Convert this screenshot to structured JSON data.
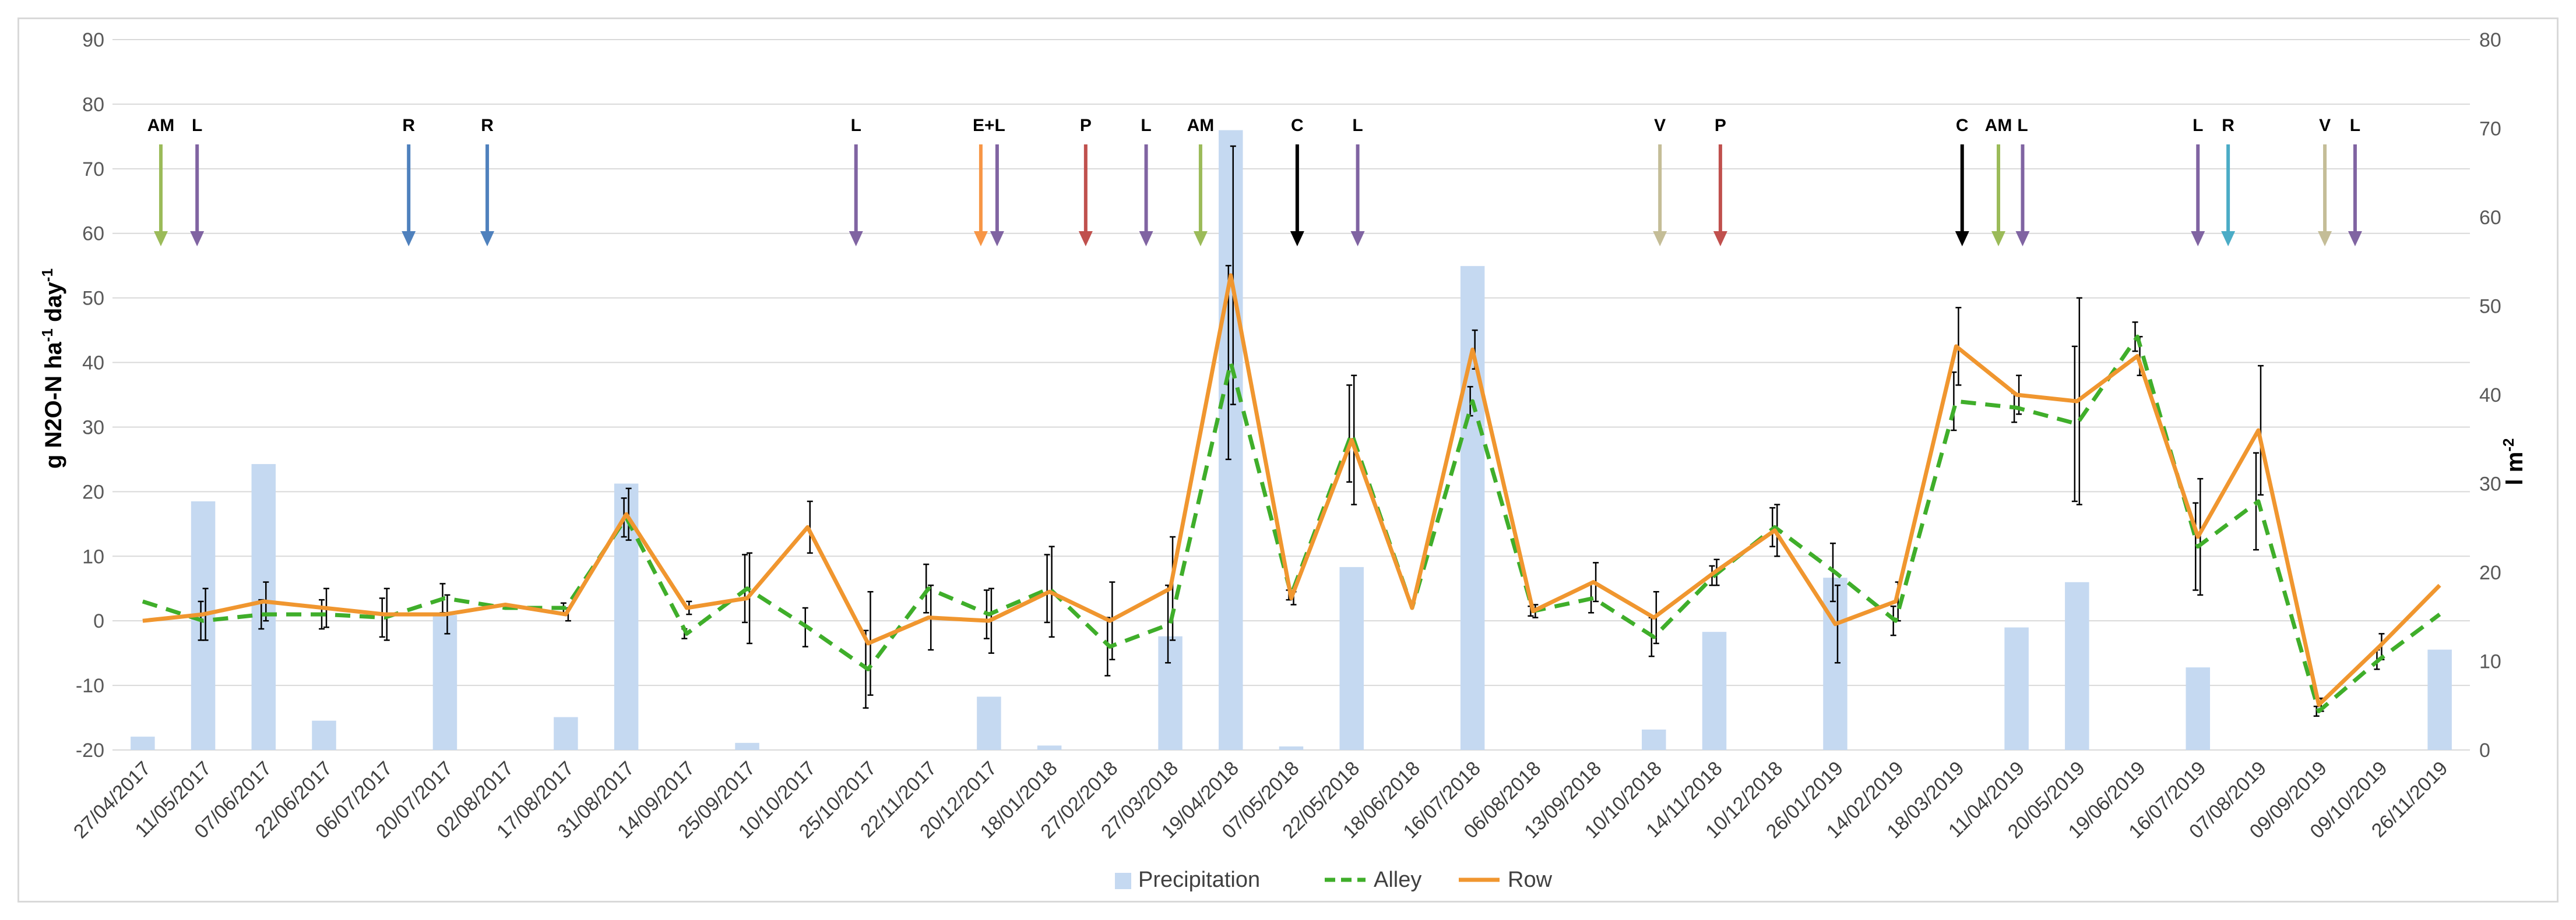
{
  "chart_data": {
    "type": "bar+line",
    "y_left": {
      "label_main": "g N2O-N ha",
      "label_sup1": "-1",
      "label_mid": " day",
      "label_sup2": "-1",
      "range": [
        -20,
        90
      ],
      "ticks": [
        -20,
        -10,
        0,
        10,
        20,
        30,
        40,
        50,
        60,
        70,
        80,
        90
      ]
    },
    "y_right": {
      "label_main": "l m",
      "label_sup": "-2",
      "range": [
        0,
        80
      ],
      "ticks": [
        0,
        10,
        20,
        30,
        40,
        50,
        60,
        70,
        80
      ]
    },
    "categories": [
      "27/04/2017",
      "11/05/2017",
      "07/06/2017",
      "22/06/2017",
      "06/07/2017",
      "20/07/2017",
      "02/08/2017",
      "17/08/2017",
      "31/08/2017",
      "14/09/2017",
      "25/09/2017",
      "10/10/2017",
      "25/10/2017",
      "22/11/2017",
      "20/12/2017",
      "18/01/2018",
      "27/02/2018",
      "27/03/2018",
      "19/04/2018",
      "07/05/2018",
      "22/05/2018",
      "18/06/2018",
      "16/07/2018",
      "06/08/2018",
      "13/09/2018",
      "10/10/2018",
      "14/11/2018",
      "10/12/2018",
      "26/01/2019",
      "14/02/2019",
      "18/03/2019",
      "11/04/2019",
      "20/05/2019",
      "19/06/2019",
      "16/07/2019",
      "07/08/2019",
      "09/09/2019",
      "09/10/2019",
      "26/11/2019"
    ],
    "series": [
      {
        "name": "Precipitation",
        "axis": "right",
        "color": "#c5d9f1",
        "values": [
          1.5,
          28,
          32.2,
          3.3,
          0,
          15.2,
          0,
          3.7,
          30,
          0,
          0.8,
          0,
          0,
          0,
          6,
          0.5,
          0,
          12.8,
          69.8,
          0.4,
          20.6,
          0,
          54.5,
          0,
          0,
          2.3,
          13.3,
          0,
          19.4,
          0,
          0,
          13.8,
          18.9,
          0,
          9.3,
          0,
          0,
          0,
          11.3
        ]
      },
      {
        "name": "Alley",
        "axis": "left",
        "color": "#3fae2a",
        "values": [
          3,
          0,
          1,
          1,
          0.5,
          3.5,
          2,
          2,
          16,
          -2,
          5,
          -1,
          -7.5,
          5,
          1,
          5,
          -4,
          -0.5,
          40,
          4,
          29,
          2,
          34,
          1.5,
          3.5,
          -2.5,
          7,
          14.5,
          7.5,
          0,
          34,
          33,
          30.5,
          44,
          11.5,
          18.5,
          -14,
          -6,
          1
        ]
      },
      {
        "name": "Row",
        "axis": "left",
        "color": "#f0962f",
        "values": [
          0,
          1,
          3,
          2,
          1,
          1,
          2.5,
          1,
          16.5,
          2,
          3.5,
          14.5,
          -3.5,
          0.5,
          0,
          4.5,
          0,
          5,
          53.5,
          3.5,
          28,
          2,
          42,
          1.5,
          6,
          0.5,
          7.5,
          14,
          -0.5,
          3,
          42.5,
          35,
          34,
          41,
          13,
          29.5,
          -13,
          -4,
          5.5
        ]
      }
    ],
    "legend": {
      "position": "bottom",
      "labels": [
        "Precipitation",
        "Alley",
        "Row"
      ]
    },
    "annotations": [
      {
        "text": "AM",
        "at": 0.3,
        "color": "#9bbb59"
      },
      {
        "text": "L",
        "at": 0.9,
        "color": "#8064a2"
      },
      {
        "text": "R",
        "at": 4.4,
        "color": "#4f81bd"
      },
      {
        "text": "R",
        "at": 5.7,
        "color": "#4f81bd"
      },
      {
        "text": "L",
        "at": 11.8,
        "color": "#8064a2"
      },
      {
        "text": "E+L",
        "at": 14,
        "color": "#f79646",
        "color2": "#8064a2"
      },
      {
        "text": "P",
        "at": 15.6,
        "color": "#c0504d"
      },
      {
        "text": "L",
        "at": 16.6,
        "color": "#8064a2"
      },
      {
        "text": "AM",
        "at": 17.5,
        "color": "#9bbb59"
      },
      {
        "text": "C",
        "at": 19.1,
        "color": "#000000"
      },
      {
        "text": "L",
        "at": 20.1,
        "color": "#8064a2"
      },
      {
        "text": "V",
        "at": 25.1,
        "color": "#c4bd97"
      },
      {
        "text": "P",
        "at": 26.1,
        "color": "#c0504d"
      },
      {
        "text": "C",
        "at": 30.1,
        "color": "#000000"
      },
      {
        "text": "AM",
        "at": 30.7,
        "color": "#9bbb59"
      },
      {
        "text": "L",
        "at": 31.1,
        "color": "#8064a2"
      },
      {
        "text": "L",
        "at": 34,
        "color": "#8064a2"
      },
      {
        "text": "R",
        "at": 34.5,
        "color": "#4bacc6"
      },
      {
        "text": "V",
        "at": 36.1,
        "color": "#c4bd97"
      },
      {
        "text": "L",
        "at": 36.6,
        "color": "#8064a2"
      }
    ]
  }
}
